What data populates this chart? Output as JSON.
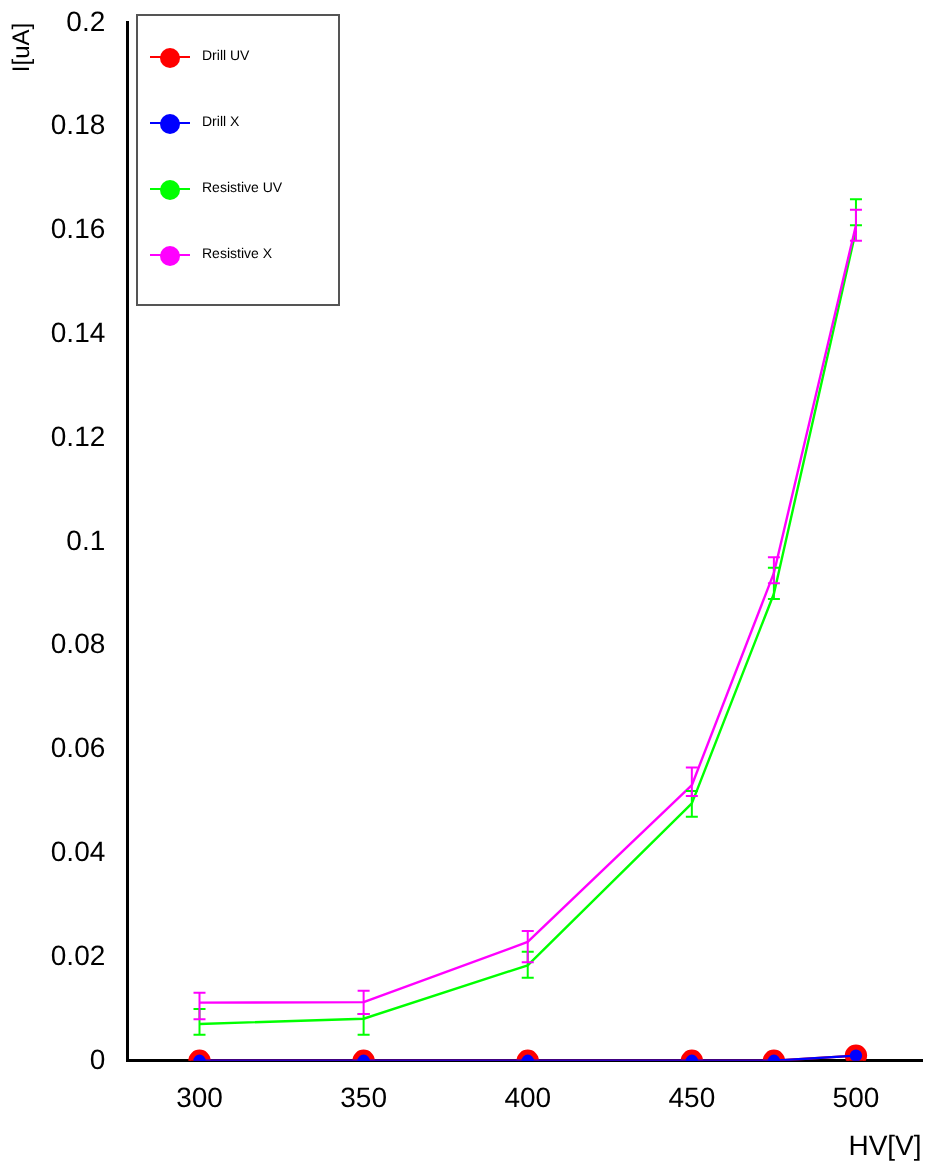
{
  "chart_data": {
    "type": "line",
    "xlabel": "HV[V]",
    "ylabel": "I[uA]",
    "x": [
      300,
      350,
      400,
      450,
      475,
      500
    ],
    "series": [
      {
        "name": "Drill UV",
        "color": "#ff0000",
        "marker": "circle",
        "values": [
          0,
          0,
          0,
          0,
          0,
          0.001
        ]
      },
      {
        "name": "Drill X",
        "color": "#0000ff",
        "marker": "circle",
        "values": [
          0,
          0,
          0,
          0,
          0,
          0.001
        ]
      },
      {
        "name": "Resistive UV",
        "color": "#00ff00",
        "marker": "none",
        "values": [
          0.0071,
          0.0081,
          0.0184,
          0.0496,
          0.09,
          0.16
        ],
        "errors": [
          [
            0.005,
            0.01
          ],
          [
            0.005,
            0.009
          ],
          [
            0.016,
            0.021
          ],
          [
            0.047,
            0.052
          ],
          [
            0.089,
            0.095
          ],
          [
            0.161,
            0.166
          ]
        ]
      },
      {
        "name": "Resistive X",
        "color": "#ff00ff",
        "marker": "none",
        "values": [
          0.0112,
          0.0113,
          0.0229,
          0.0531,
          0.094,
          0.161
        ],
        "errors": [
          [
            0.008,
            0.0131
          ],
          [
            0.009,
            0.0135
          ],
          [
            0.019,
            0.025
          ],
          [
            0.051,
            0.0565
          ],
          [
            0.092,
            0.097
          ],
          [
            0.158,
            0.164
          ]
        ]
      }
    ],
    "xlim": [
      278,
      520
    ],
    "xticks": [
      300,
      350,
      400,
      450,
      500
    ],
    "ylim": [
      0,
      0.2
    ],
    "yticks": [
      0,
      0.02,
      0.04,
      0.06,
      0.08,
      0.1,
      0.12,
      0.14,
      0.16,
      0.18,
      0.2
    ],
    "grid": false,
    "legend": "top left"
  }
}
